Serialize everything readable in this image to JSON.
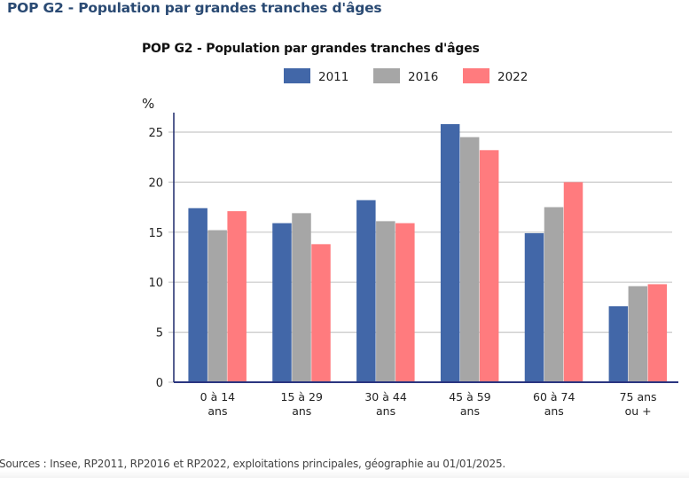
{
  "page": {
    "title": "POP G2 - Population par grandes tranches d'âges",
    "source": "Sources : Insee, RP2011, RP2016 et RP2022, exploitations principales, géographie au 01/01/2025."
  },
  "chart_data": {
    "type": "bar",
    "title": "POP G2 - Population par grandes tranches d'âges",
    "ylabel": "%",
    "xlabel": "",
    "ylim": [
      0,
      27
    ],
    "yticks": [
      0,
      5,
      10,
      15,
      20,
      25
    ],
    "grid": true,
    "legend_position": "top-right",
    "categories": [
      [
        "0 à 14",
        "ans"
      ],
      [
        "15 à 29",
        "ans"
      ],
      [
        "30 à 44",
        "ans"
      ],
      [
        "45 à 59",
        "ans"
      ],
      [
        "60 à 74",
        "ans"
      ],
      [
        "75 ans",
        "ou +"
      ]
    ],
    "series": [
      {
        "name": "2011",
        "color": "#4267a8",
        "values": [
          17.4,
          15.9,
          18.2,
          25.8,
          14.9,
          7.6
        ]
      },
      {
        "name": "2016",
        "color": "#a6a6a6",
        "values": [
          15.2,
          16.9,
          16.1,
          24.5,
          17.5,
          9.6
        ]
      },
      {
        "name": "2022",
        "color": "#ff7b7e",
        "values": [
          17.1,
          13.8,
          15.9,
          23.2,
          20.0,
          9.8
        ]
      }
    ]
  }
}
